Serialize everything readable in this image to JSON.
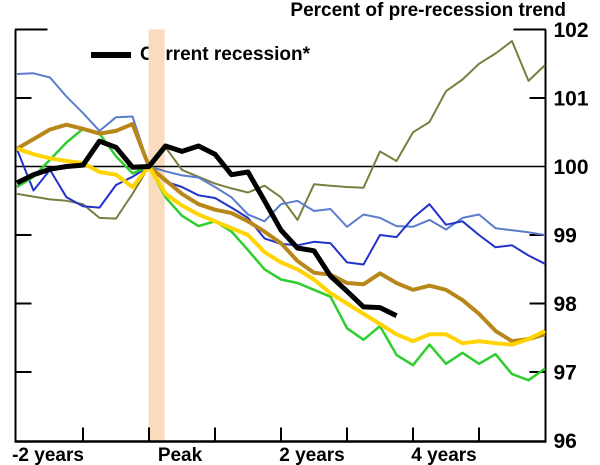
{
  "chart_data": {
    "type": "line",
    "title": "Percent of pre-recession trend",
    "legend": {
      "label": "Current recession*",
      "color": "#000000",
      "position": "top-left-inside"
    },
    "y_axis": {
      "ticks": [
        102,
        101,
        100,
        99,
        98,
        97,
        96
      ],
      "range": [
        96,
        102.1
      ],
      "side": "right",
      "grid": false
    },
    "x_axis": {
      "unit": "quarters relative to business cycle peak",
      "range_quarters": [
        -8,
        24
      ],
      "tick_quarters": [
        -4,
        0,
        4,
        8,
        12,
        16,
        20
      ],
      "labels": [
        {
          "text": "-2 years",
          "at_quarter": -8
        },
        {
          "text": "Peak",
          "at_quarter": 0
        },
        {
          "text": "2 years",
          "at_quarter": 8
        },
        {
          "text": "4 years",
          "at_quarter": 16
        }
      ]
    },
    "reference_line": 100,
    "peak_band": {
      "from_quarter": 0,
      "to_quarter": 0.95,
      "color": "#F9DCBD"
    },
    "series": [
      {
        "name": "olive-line",
        "color": "#7A7E40",
        "width": 2,
        "start_quarter": -8,
        "values": [
          99.6,
          99.56,
          99.52,
          99.5,
          99.45,
          99.25,
          99.24,
          99.6,
          100.0,
          100.28,
          99.95,
          99.85,
          99.75,
          99.68,
          99.62,
          99.72,
          99.55,
          99.22,
          99.74,
          99.72,
          99.7,
          99.69,
          100.22,
          100.08,
          100.5,
          100.65,
          101.1,
          101.27,
          101.5,
          101.65,
          101.83,
          101.25,
          101.48
        ]
      },
      {
        "name": "light-blue-line",
        "color": "#5C7CCE",
        "width": 2,
        "start_quarter": -8,
        "values": [
          101.35,
          101.36,
          101.3,
          101.02,
          100.78,
          100.52,
          100.72,
          100.73,
          100.0,
          99.93,
          99.87,
          99.84,
          99.7,
          99.55,
          99.3,
          99.2,
          99.45,
          99.5,
          99.35,
          99.38,
          99.12,
          99.3,
          99.25,
          99.13,
          99.12,
          99.22,
          99.08,
          99.25,
          99.3,
          99.1,
          99.07,
          99.04,
          99.0
        ]
      },
      {
        "name": "dark-blue-line",
        "color": "#2233CC",
        "width": 2,
        "start_quarter": -8,
        "values": [
          100.25,
          99.65,
          99.95,
          99.55,
          99.42,
          99.4,
          99.73,
          99.85,
          100.0,
          99.78,
          99.7,
          99.58,
          99.54,
          99.4,
          99.25,
          98.95,
          98.87,
          98.85,
          98.9,
          98.88,
          98.6,
          98.57,
          99.0,
          98.97,
          99.25,
          99.45,
          99.15,
          99.2,
          99.0,
          98.82,
          98.85,
          98.7,
          98.58
        ]
      },
      {
        "name": "green-line",
        "color": "#2FCE2F",
        "width": 2.5,
        "start_quarter": -8,
        "values": [
          99.7,
          99.85,
          100.1,
          100.35,
          100.55,
          100.48,
          100.15,
          99.9,
          100.0,
          99.55,
          99.28,
          99.13,
          99.2,
          99.05,
          98.78,
          98.5,
          98.35,
          98.3,
          98.2,
          98.1,
          97.64,
          97.47,
          97.67,
          97.25,
          97.1,
          97.4,
          97.12,
          97.28,
          97.12,
          97.26,
          96.97,
          96.88,
          97.05
        ]
      },
      {
        "name": "dark-gold-line",
        "color": "#B8871A",
        "width": 4,
        "start_quarter": -8,
        "values": [
          100.26,
          100.4,
          100.54,
          100.61,
          100.55,
          100.48,
          100.52,
          100.62,
          100.0,
          99.8,
          99.6,
          99.45,
          99.37,
          99.32,
          99.2,
          99.05,
          98.88,
          98.62,
          98.45,
          98.42,
          98.3,
          98.28,
          98.44,
          98.3,
          98.2,
          98.26,
          98.2,
          98.05,
          97.85,
          97.6,
          97.45,
          97.48,
          97.55
        ]
      },
      {
        "name": "yellow-line",
        "color": "#FFD400",
        "width": 4,
        "start_quarter": -8,
        "values": [
          100.26,
          100.18,
          100.12,
          100.08,
          100.05,
          99.92,
          99.88,
          99.7,
          100.0,
          99.6,
          99.43,
          99.3,
          99.2,
          99.1,
          99.0,
          98.75,
          98.6,
          98.5,
          98.35,
          98.15,
          98.0,
          97.85,
          97.7,
          97.55,
          97.45,
          97.55,
          97.55,
          97.42,
          97.45,
          97.42,
          97.4,
          97.48,
          97.6
        ]
      },
      {
        "name": "current-recession-line",
        "label": "Current recession*",
        "color": "#000000",
        "width": 5,
        "start_quarter": -8,
        "values": [
          99.76,
          99.88,
          99.96,
          100.0,
          100.02,
          100.37,
          100.28,
          99.99,
          100.0,
          100.3,
          100.22,
          100.3,
          100.18,
          99.88,
          99.92,
          99.5,
          99.07,
          98.81,
          98.77,
          98.4,
          98.18,
          97.95,
          97.94,
          97.82
        ]
      }
    ]
  }
}
